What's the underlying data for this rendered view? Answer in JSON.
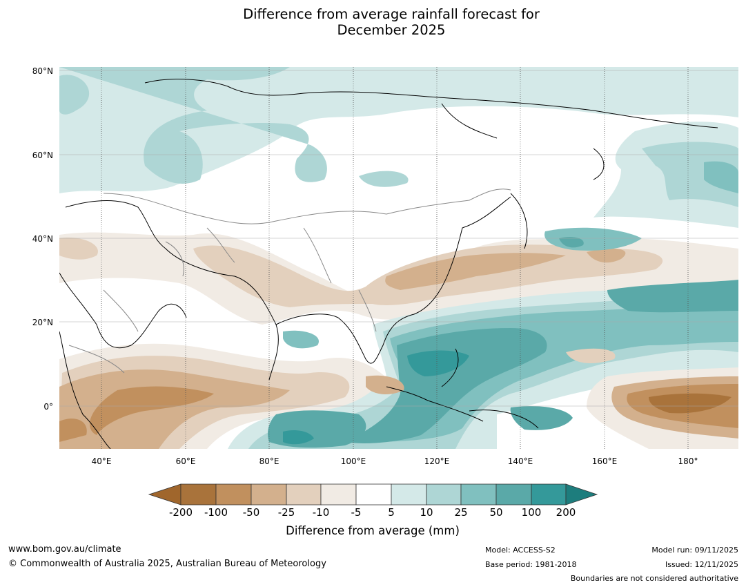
{
  "title": {
    "line1": "Difference from average rainfall forecast for",
    "line2": "December 2025"
  },
  "map": {
    "lat_labels": [
      "80°N",
      "60°N",
      "40°N",
      "20°N",
      "0°"
    ],
    "lon_labels": [
      "40°E",
      "60°E",
      "80°E",
      "100°E",
      "120°E",
      "140°E",
      "160°E",
      "180°"
    ],
    "colors": {
      "dry_strong": "#a0662c",
      "dry_200": "#a9733b",
      "dry_100": "#c1905e",
      "dry_50": "#d3b08d",
      "dry_25": "#e3d0bd",
      "dry_10": "#f1ebe4",
      "neutral": "#ffffff",
      "wet_5": "#d4e9e8",
      "wet_10": "#aed6d5",
      "wet_25": "#80c0bf",
      "wet_50": "#5aa9a8",
      "wet_100": "#34999a",
      "wet_strong": "#1d7d7d",
      "coast": "#000000",
      "border": "#888888"
    }
  },
  "legend": {
    "tick_labels": [
      "-200",
      "-100",
      "-50",
      "-25",
      "-10",
      "-5",
      "5",
      "10",
      "25",
      "50",
      "100",
      "200"
    ],
    "title": "Difference from average (mm)"
  },
  "footer": {
    "website": "www.bom.gov.au/climate",
    "copyright": "© Commonwealth of Australia 2025, Australian Bureau of Meteorology",
    "model": "Model: ACCESS-S2",
    "base_period": "Base period: 1981-2018",
    "model_run": "Model run: 09/11/2025",
    "issued": "Issued: 12/11/2025",
    "disclaimer": "Boundaries are not considered authoritative"
  }
}
